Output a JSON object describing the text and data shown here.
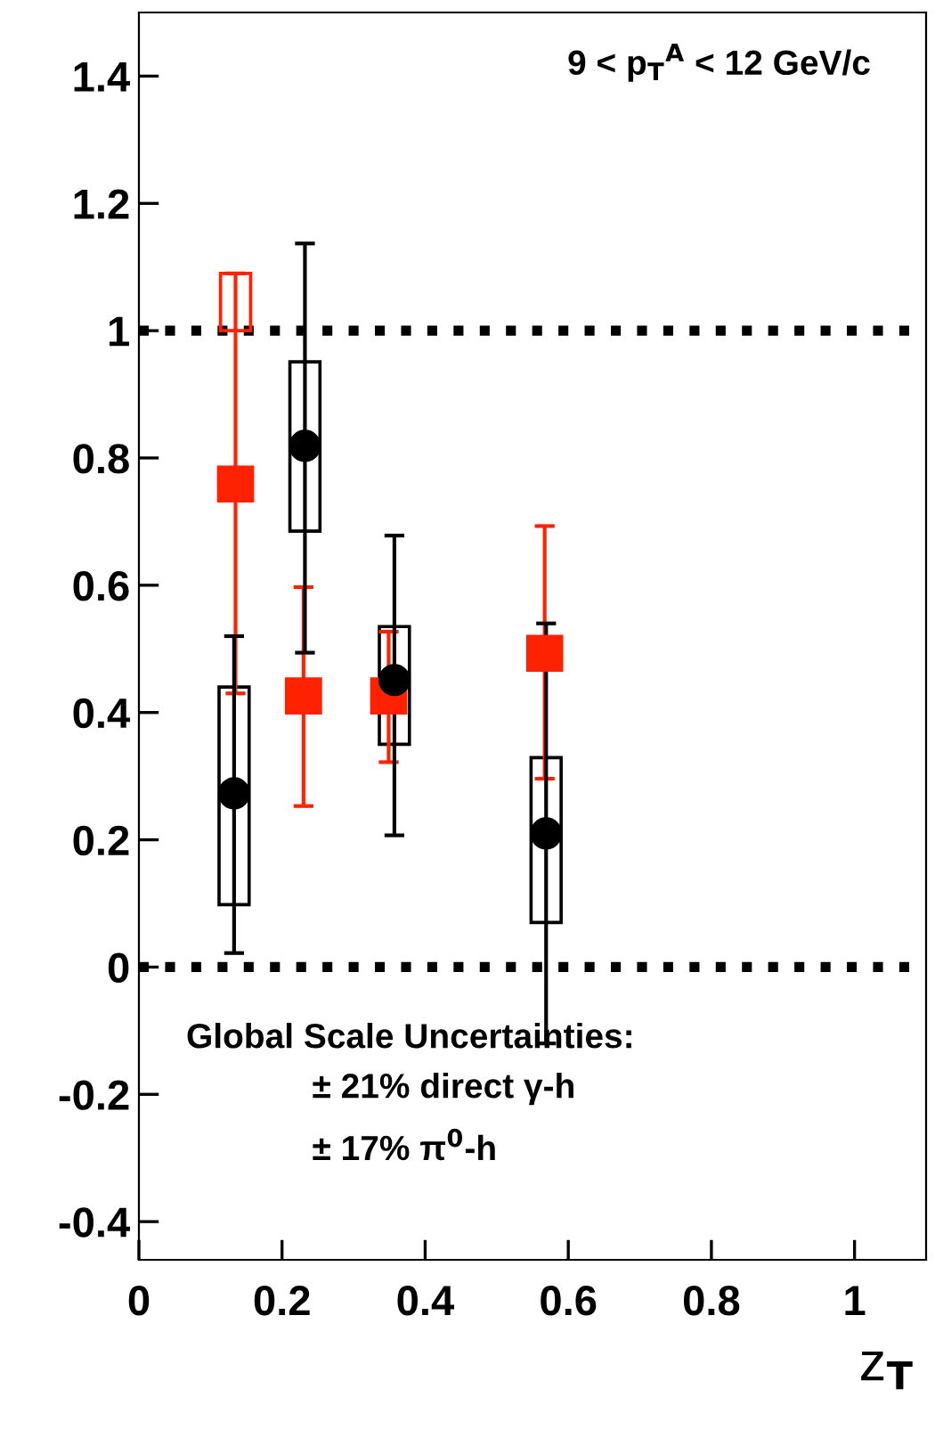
{
  "chart_data": {
    "type": "scatter",
    "xlabel": "z$_{T}$",
    "xlim": [
      0,
      1.1
    ],
    "xticks": [
      0,
      0.2,
      0.4,
      0.6,
      0.8,
      1
    ],
    "ylim": [
      -0.46,
      1.5
    ],
    "yticks": [
      -0.4,
      -0.2,
      0,
      0.2,
      0.4,
      0.6,
      0.8,
      1,
      1.2,
      1.4
    ],
    "grid": false,
    "legend": false,
    "series": [
      {
        "type": "bar",
        "color": "#000000",
        "x": [
          0.133,
          0.232,
          0.357,
          0.569
        ],
        "base": [
          0.098,
          0.685,
          0.35,
          0.07
        ],
        "values": [
          0.342,
          0.266,
          0.185,
          0.259
        ]
      },
      {
        "type": "bar",
        "color": "#ff2200",
        "x": [
          0.135
        ],
        "base": [
          1.0
        ],
        "values": [
          0.09
        ]
      },
      {
        "marker": "square",
        "color": "#ff2200",
        "x": [
          0.135,
          0.23,
          0.349,
          0.567
        ],
        "values": [
          0.759,
          0.426,
          0.426,
          0.493
        ],
        "errors": [
          [
            0.43,
            1.09
          ],
          [
            0.253,
            0.597
          ],
          [
            0.322,
            0.527
          ],
          [
            0.296,
            0.693
          ]
        ]
      },
      {
        "marker": "circle",
        "color": "#000000",
        "x": [
          0.133,
          0.232,
          0.357,
          0.569
        ],
        "values": [
          0.273,
          0.819,
          0.451,
          0.21
        ],
        "errors": [
          [
            0.022,
            0.52
          ],
          [
            0.494,
            1.137
          ],
          [
            0.207,
            0.678
          ],
          [
            -0.12,
            0.54
          ]
        ]
      }
    ],
    "ref_lines": [
      {
        "axis": "y",
        "value": 1,
        "color": "#000000",
        "line_style": "dotted"
      },
      {
        "axis": "y",
        "value": 0,
        "color": "#000000",
        "line_style": "dotted"
      }
    ],
    "annotations": [
      {
        "text": "9 < p$_{T}$$^{A}$ < 12 GeV/c"
      },
      {
        "text": "Global Scale Uncertainties:"
      },
      {
        "text": "± 21% direct γ-h"
      },
      {
        "text": "± 17% π$^{0}$-h"
      }
    ]
  }
}
